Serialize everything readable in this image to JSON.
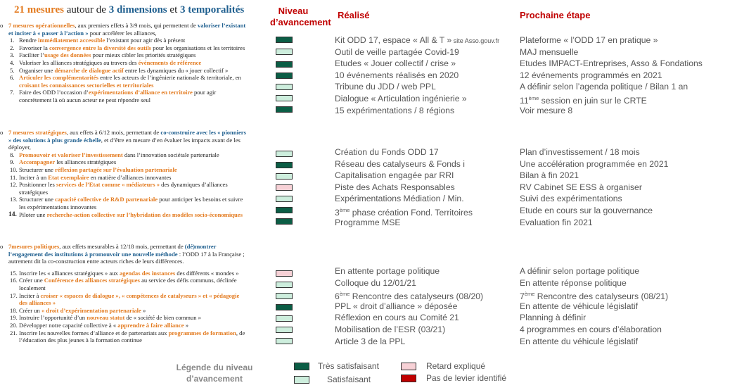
{
  "title": {
    "n": "21 mesures",
    "t1": " autour de ",
    "d": "3 dimensions",
    "t2": " et ",
    "tp": "3 temporalités"
  },
  "headers": {
    "niveau": "Niveau d’avancement",
    "realise": "Réalisé",
    "prochaine": "Prochaine étape"
  },
  "section1": {
    "bullet": "o",
    "lead_orange": "7 mesures opérationnelles",
    "lead_text": ", aux premiers effets à 3/9 mois, qui permettent de ",
    "lead_blue": "valoriser l’existant et inciter à « passer à l’action »",
    "lead_tail": " pour accélérer les alliances,",
    "items": [
      {
        "num": "1.",
        "a": "Rendre ",
        "o": "immédiatement accessible",
        "b": " l’existant pour agir dès à présent"
      },
      {
        "num": "2.",
        "a": "Favoriser la ",
        "o": "convergence entre la diversité des outils",
        "b": " pour les organisations et les territoires"
      },
      {
        "num": "3.",
        "a": "Faciliter l’",
        "o": "usage des données",
        "b": " pour mieux cibler les priorités stratégiques"
      },
      {
        "num": "4.",
        "a": "Valoriser les alliances stratégiques au travers des ",
        "o": "événements de référence",
        "b": ""
      },
      {
        "num": "5.",
        "a": "Organiser une ",
        "o": "démarche de dialogue actif",
        "b": " entre les dynamiques du « jouer collectif »"
      },
      {
        "num": "6.",
        "a": "",
        "o": "Articuler les complémentarités",
        "b": " entre les acteurs de l’ingénierie nationale & territoriale, en ",
        "o2": "croisant les connaissances sectorielles et territoriales",
        "b2": ""
      },
      {
        "num": "7.",
        "a": "Faire des ODD l’occasion d’",
        "o": "expérimentations d’alliance en territoire",
        "b": " pour agir concrètement là où aucun acteur ne peut répondre seul"
      }
    ]
  },
  "section2": {
    "bullet": "o",
    "lead_orange": "7 mesures stratégiques",
    "lead_text": ", aux effets à 6/12 mois, permettant de ",
    "lead_blue": "co-construire avec les « pionniers » des solutions à plus grande échelle",
    "lead_tail": ", et d’être en mesure d’en évaluer les impacts avant de les déployer,",
    "items": [
      {
        "num": "8.",
        "a": "",
        "o": "Promouvoir et valoriser l’investissement",
        "b": " dans l’innovation sociétale partenariale"
      },
      {
        "num": "9.",
        "a": "",
        "o": "Accompagner",
        "b": " les alliances stratégiques"
      },
      {
        "num": "10.",
        "a": "Structurer une ",
        "o": "réflexion partagée sur l’évaluation partenariale",
        "b": ""
      },
      {
        "num": "11.",
        "a": "Inciter à un ",
        "o": "Etat exemplaire",
        "b": " en matière d’alliances innovantes"
      },
      {
        "num": "12.",
        "a": "Positionner les ",
        "o": "services de l’Etat comme « médiateurs »",
        "b": " des dynamiques d’alliances stratégiques"
      },
      {
        "num": "13.",
        "a": "Structurer une ",
        "o": "capacité collective de R&D partenariale",
        "b": " pour anticiper les besoins et suivre les expérimentations innovantes"
      },
      {
        "num": "14.",
        "a": "Piloter une ",
        "o": "recherche-action collective sur l’hybridation des modèles socio-économiques",
        "b": ""
      }
    ]
  },
  "section3": {
    "bullet": "o",
    "lead_orange": "7mesures politiques",
    "lead_text": ", aux effets mesurables à 12/18 mois, permettant de ",
    "lead_red": "(dé)montrer",
    "lead_blue": "l’engagement des institutions à promouvoir une nouvelle méthode",
    "lead_tail": " : l’ODD 17 à la Française ; autrement dit la co-construction entre acteurs riches de leurs différences.",
    "items": [
      {
        "num": "15.",
        "a": "Inscrire les « alliances stratégiques » aux ",
        "o": "agendas des instances",
        "b": " des différents « mondes »"
      },
      {
        "num": "16.",
        "a": "Créer une ",
        "o": "Conférence des alliances stratégiques",
        "b": " au service des défis communs, déclinée localement"
      },
      {
        "num": "17.",
        "a": "Inciter à ",
        "o": "croiser « espaces de dialogue », « compétences de catalyseurs » et « pédagogie des alliances »",
        "b": ""
      },
      {
        "num": "18.",
        "a": "Créer un ",
        "o": "« droit d’expérimentation partenariale",
        "b": " »"
      },
      {
        "num": "19.",
        "a": "Instruire l’opportunité d’un ",
        "o": "nouveau statut",
        "b": " de « société de bien commun »"
      },
      {
        "num": "20.",
        "a": "Développer notre capacité collective à « ",
        "o": "apprendre à faire alliance",
        "b": " »"
      },
      {
        "num": "21.",
        "a": "Inscrire les nouvelles formes d’alliance et de partenariats aux ",
        "o": "programmes de formation",
        "b": ", de l’éducation des plus jeunes à la formation continue"
      }
    ]
  },
  "realise": {
    "g1": [
      "Kit ODD 17, espace « All & T »",
      "Outil de veille partagée Covid-19",
      "Etudes « Jouer collectif / crise »",
      "10 événements réalisés en 2020",
      "Tribune du JDD / web PPL",
      "Dialogue « Articulation ingénierie »",
      "15 expérimentations / 8 régions"
    ],
    "g1_small": " site Asso.gouv.fr",
    "g2": [
      "Création du Fonds ODD 17",
      "Réseau des catalyseurs & Fonds i",
      "Capitalisation engagée par RRI",
      "Piste des Achats Responsables",
      "Expérimentations Médiation / Min.",
      "phase création Fond. Territoires",
      "Programme MSE"
    ],
    "g2_sup_num": "3",
    "g2_sup": "ème",
    "g3": [
      "En attente portage politique",
      "Colloque du 12/01/21",
      "Rencontre des catalyseurs (08/20)",
      "PPL « droit d’alliance » déposée",
      "Réflexion en cours au Comité 21",
      "Mobilisation de l’ESR (03/21)",
      "Article 3 de la PPL"
    ],
    "g3_sup_num": "6",
    "g3_sup": "ème"
  },
  "prochaine": {
    "g1": [
      "Plateforme « l’ODD 17 en pratique »",
      "MAJ mensuelle",
      "Etudes IMPACT-Entreprises, Asso & Fondations",
      "12 événements programmés  en 2021",
      "A définir selon l’agenda politique / Bilan 1 an",
      "session en juin sur le CRTE",
      "Voir mesure 8"
    ],
    "g1_sup_num": "11",
    "g1_sup": "ème",
    "g2": [
      "Plan d’investissement / 18 mois",
      "Une accélération programmée  en 2021",
      "Bilan à fin 2021",
      "RV Cabinet SE ESS à organiser",
      "Suivi des expérimentations",
      "Etude en cours sur la gouvernance",
      "Evaluation fin 2021"
    ],
    "g3": [
      "A définir selon portage politique",
      "En attente réponse politique",
      "Rencontre des catalyseurs (08/21)",
      "En attente de véhicule législatif",
      "Planning à définir",
      "4 programmes  en cours d’élaboration",
      "En attente du véhicule législatif"
    ],
    "g3_sup_num": "7",
    "g3_sup": "ème"
  },
  "status_colors": {
    "tres_satisfaisant": "#0b5d45",
    "satisfaisant": "#cdeedd",
    "retard_explique": "#f7d1d6",
    "pas_de_levier": "#c00000"
  },
  "status": {
    "g1": [
      "tres_satisfaisant",
      "satisfaisant",
      "tres_satisfaisant",
      "tres_satisfaisant",
      "satisfaisant",
      "satisfaisant",
      "tres_satisfaisant"
    ],
    "g2": [
      "satisfaisant",
      "tres_satisfaisant",
      "satisfaisant",
      "retard_explique",
      "satisfaisant",
      "tres_satisfaisant",
      "tres_satisfaisant"
    ],
    "g3": [
      "retard_explique",
      "satisfaisant",
      "satisfaisant",
      "tres_satisfaisant",
      "satisfaisant",
      "satisfaisant",
      "satisfaisant"
    ]
  },
  "legend": {
    "title": "Légende du niveau d’avancement",
    "tres_satisfaisant": "Très satisfaisant",
    "satisfaisant": "Satisfaisant",
    "retard_explique": "Retard expliqué",
    "pas_de_levier": "Pas de levier identifié"
  }
}
